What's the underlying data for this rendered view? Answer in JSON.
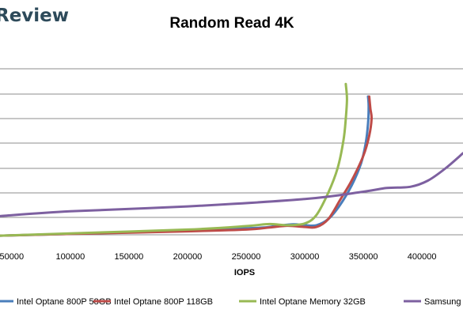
{
  "brand": {
    "text": "Review"
  },
  "chart_data": {
    "type": "line",
    "title": "Random Read 4K",
    "xlabel": "IOPS",
    "ylabel": "",
    "xlim": [
      40000,
      435000
    ],
    "ylim": [
      -0.7,
      7.3
    ],
    "x_ticks": [
      50000,
      100000,
      150000,
      200000,
      250000,
      300000,
      350000,
      400000
    ],
    "x_tick_labels": [
      "50000",
      "100000",
      "150000",
      "200000",
      "250000",
      "300000",
      "350000",
      "400000"
    ],
    "y_gridlines": [
      0,
      1,
      2,
      3,
      4,
      5,
      6,
      7
    ],
    "grid": true,
    "legend": "bottom",
    "series": [
      {
        "name": "Intel Optane 800P 58GB",
        "color": "#4a7ebb",
        "points": [
          [
            40000,
            -0.05
          ],
          [
            100000,
            0.05
          ],
          [
            200000,
            0.25
          ],
          [
            260000,
            0.4
          ],
          [
            275000,
            0.5
          ],
          [
            290000,
            0.6
          ],
          [
            300000,
            0.55
          ],
          [
            310000,
            0.55
          ],
          [
            320000,
            0.9
          ],
          [
            330000,
            1.5
          ],
          [
            340000,
            2.3
          ],
          [
            348000,
            3.2
          ],
          [
            352000,
            4.0
          ],
          [
            354000,
            4.8
          ],
          [
            354500,
            5.5
          ],
          [
            354000,
            5.9
          ]
        ]
      },
      {
        "name": "Intel Optane 800P 118GB",
        "color": "#be4b48",
        "points": [
          [
            40000,
            -0.05
          ],
          [
            100000,
            0.05
          ],
          [
            200000,
            0.2
          ],
          [
            250000,
            0.3
          ],
          [
            270000,
            0.42
          ],
          [
            285000,
            0.52
          ],
          [
            300000,
            0.45
          ],
          [
            310000,
            0.45
          ],
          [
            320000,
            0.9
          ],
          [
            330000,
            1.7
          ],
          [
            340000,
            2.5
          ],
          [
            350000,
            3.5
          ],
          [
            355000,
            4.3
          ],
          [
            357000,
            5.0
          ],
          [
            356000,
            5.4
          ],
          [
            355000,
            5.9
          ]
        ]
      },
      {
        "name": "Intel Optane Memory 32GB",
        "color": "#98b954",
        "points": [
          [
            40000,
            -0.05
          ],
          [
            100000,
            0.08
          ],
          [
            200000,
            0.3
          ],
          [
            250000,
            0.5
          ],
          [
            270000,
            0.62
          ],
          [
            285000,
            0.55
          ],
          [
            300000,
            0.65
          ],
          [
            310000,
            1.1
          ],
          [
            320000,
            2.0
          ],
          [
            328000,
            3.0
          ],
          [
            333000,
            4.1
          ],
          [
            335000,
            5.0
          ],
          [
            336000,
            5.8
          ],
          [
            335000,
            6.4
          ]
        ]
      },
      {
        "name": "Samsung",
        "color": "#7d60a0",
        "points": [
          [
            40000,
            1.05
          ],
          [
            100000,
            1.25
          ],
          [
            200000,
            1.45
          ],
          [
            300000,
            1.75
          ],
          [
            350000,
            2.05
          ],
          [
            370000,
            2.2
          ],
          [
            390000,
            2.25
          ],
          [
            405000,
            2.5
          ],
          [
            420000,
            3.0
          ],
          [
            435000,
            3.6
          ]
        ]
      }
    ]
  }
}
